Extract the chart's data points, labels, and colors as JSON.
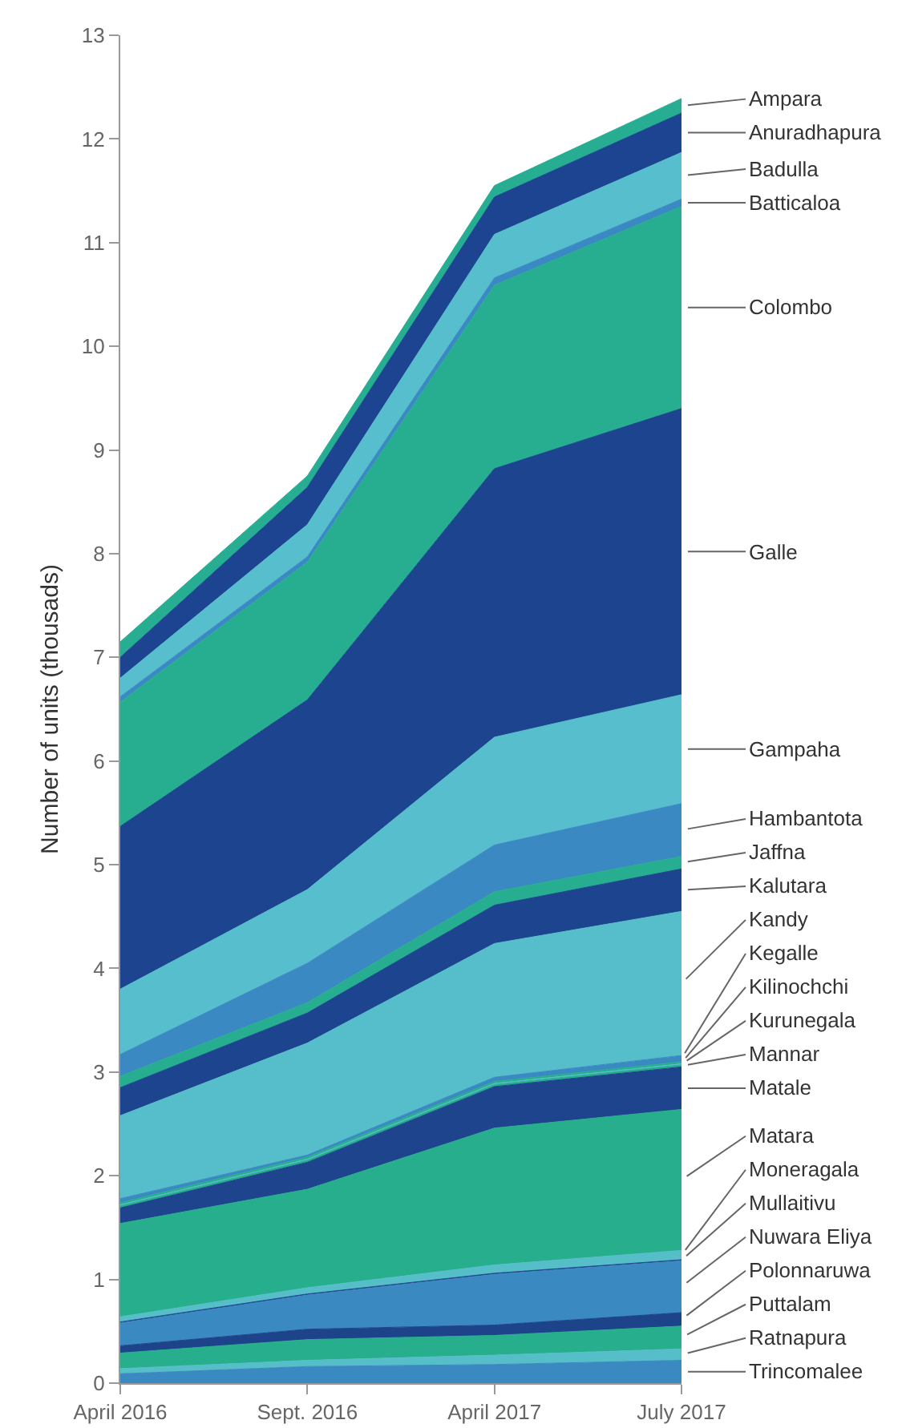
{
  "chart_data": {
    "type": "area",
    "stacked": true,
    "ylabel": "Number of units (thousads)",
    "categories": [
      "April 2016",
      "Sept. 2016",
      "April 2017",
      "July 2017"
    ],
    "ylim": [
      0,
      13
    ],
    "yticks": [
      0,
      1,
      2,
      3,
      4,
      5,
      6,
      7,
      8,
      9,
      10,
      11,
      12,
      13
    ],
    "grid": false,
    "series": [
      {
        "name": "Trincomalee",
        "color": "#3a89c0",
        "values": [
          0.09,
          0.16,
          0.18,
          0.22
        ]
      },
      {
        "name": "Ratnapura",
        "color": "#56bec8",
        "values": [
          0.05,
          0.06,
          0.09,
          0.11
        ]
      },
      {
        "name": "Puttalam",
        "color": "#27ae8c",
        "values": [
          0.15,
          0.2,
          0.19,
          0.22
        ]
      },
      {
        "name": "Polonnaruwa",
        "color": "#1d448b",
        "values": [
          0.07,
          0.1,
          0.1,
          0.13
        ]
      },
      {
        "name": "Nuwara Eliya",
        "color": "#3a89c1",
        "values": [
          0.22,
          0.33,
          0.49,
          0.5
        ]
      },
      {
        "name": "Mullaitivu",
        "color": "#1d448c",
        "values": [
          0.01,
          0.01,
          0.01,
          0.01
        ]
      },
      {
        "name": "Moneragala",
        "color": "#56bec9",
        "values": [
          0.05,
          0.06,
          0.08,
          0.09
        ]
      },
      {
        "name": "Matara",
        "color": "#27ae8d",
        "values": [
          0.9,
          0.95,
          1.32,
          1.36
        ]
      },
      {
        "name": "Matale",
        "color": "#1d448d",
        "values": [
          0.15,
          0.26,
          0.4,
          0.41
        ]
      },
      {
        "name": "Mannar",
        "color": "#27ae8e",
        "values": [
          0.02,
          0.02,
          0.02,
          0.02
        ]
      },
      {
        "name": "Kurunegala",
        "color": "#56beca",
        "values": [
          0.01,
          0.01,
          0.01,
          0.01
        ]
      },
      {
        "name": "Kilinochchi",
        "color": "#27ae8f",
        "values": [
          0.02,
          0.02,
          0.02,
          0.02
        ]
      },
      {
        "name": "Kegalle",
        "color": "#3a89c2",
        "values": [
          0.04,
          0.02,
          0.04,
          0.06
        ]
      },
      {
        "name": "Kandy",
        "color": "#56becb",
        "values": [
          0.8,
          1.08,
          1.29,
          1.39
        ]
      },
      {
        "name": "Kalutara",
        "color": "#1d448e",
        "values": [
          0.27,
          0.29,
          0.37,
          0.41
        ]
      },
      {
        "name": "Jaffna",
        "color": "#27ae90",
        "values": [
          0.11,
          0.1,
          0.13,
          0.12
        ]
      },
      {
        "name": "Hambantota",
        "color": "#3a89c3",
        "values": [
          0.21,
          0.38,
          0.45,
          0.51
        ]
      },
      {
        "name": "Gampaha",
        "color": "#56becc",
        "values": [
          0.63,
          0.71,
          1.04,
          1.05
        ]
      },
      {
        "name": "Galle",
        "color": "#1d448f",
        "values": [
          1.57,
          1.83,
          2.59,
          2.76
        ]
      },
      {
        "name": "Colombo",
        "color": "#27ae91",
        "values": [
          1.2,
          1.33,
          1.77,
          1.95
        ]
      },
      {
        "name": "Batticaloa",
        "color": "#3a89c4",
        "values": [
          0.05,
          0.05,
          0.07,
          0.07
        ]
      },
      {
        "name": "Badulla",
        "color": "#56becd",
        "values": [
          0.18,
          0.31,
          0.42,
          0.45
        ]
      },
      {
        "name": "Anuradhapura",
        "color": "#1d4490",
        "values": [
          0.2,
          0.36,
          0.36,
          0.38
        ]
      },
      {
        "name": "Ampara",
        "color": "#27ae92",
        "values": [
          0.15,
          0.11,
          0.11,
          0.14
        ]
      }
    ]
  }
}
